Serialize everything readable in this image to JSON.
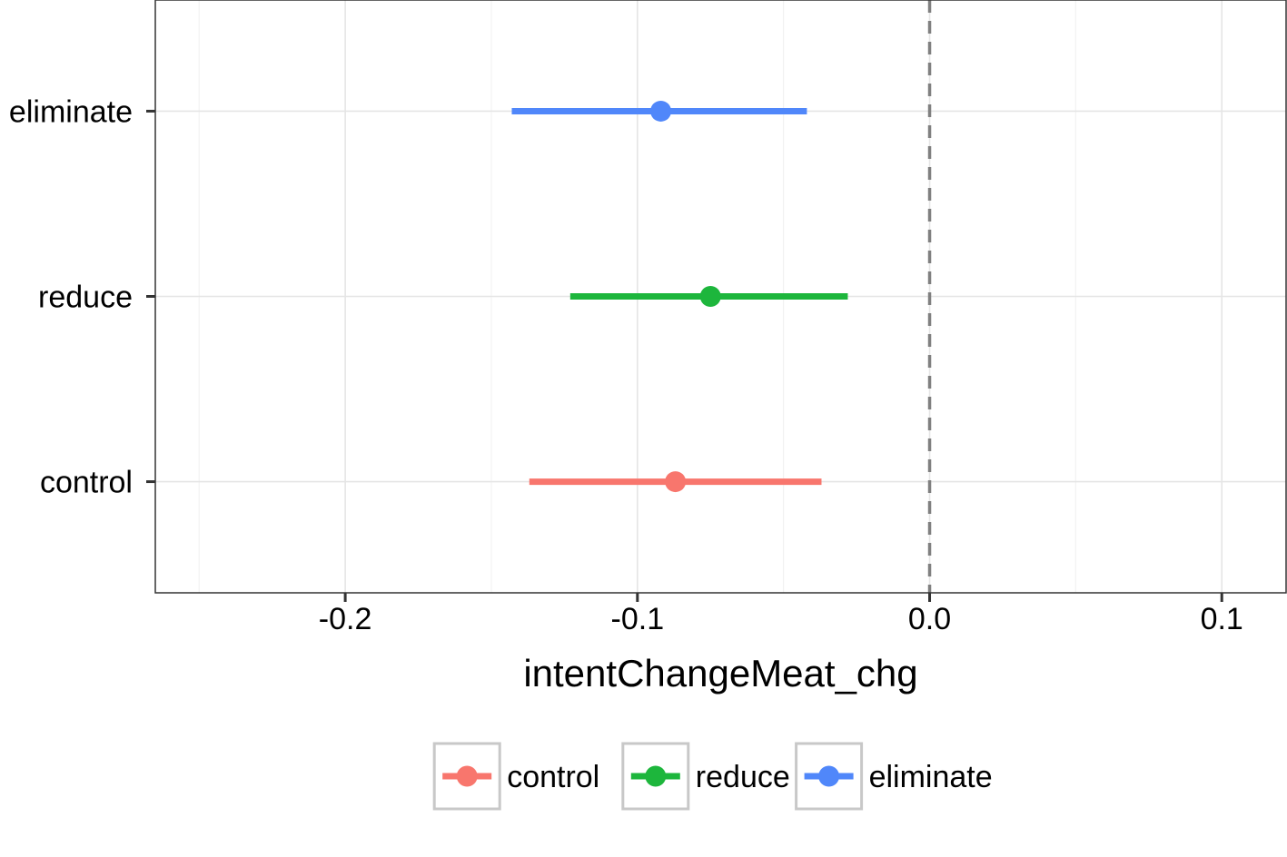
{
  "chart_data": {
    "type": "pointrange",
    "title": "",
    "xlabel": "intentChangeMeat_chg",
    "ylabel": "",
    "xlim": [
      -0.265,
      0.122
    ],
    "x_ticks": [
      -0.2,
      -0.1,
      0.0,
      0.1
    ],
    "x_tick_labels": [
      "-0.2",
      "-0.1",
      "0.0",
      "0.1"
    ],
    "reference_line": {
      "x": 0.0,
      "style": "dashed",
      "color": "#808080"
    },
    "grid": true,
    "legend_position": "bottom",
    "categories": [
      "control",
      "reduce",
      "eliminate"
    ],
    "series": [
      {
        "name": "control",
        "estimate": -0.087,
        "lower": -0.137,
        "upper": -0.037,
        "color": "#F8766D"
      },
      {
        "name": "reduce",
        "estimate": -0.075,
        "lower": -0.123,
        "upper": -0.028,
        "color": "#1DB63C"
      },
      {
        "name": "eliminate",
        "estimate": -0.092,
        "lower": -0.143,
        "upper": -0.042,
        "color": "#5087FA"
      }
    ]
  }
}
